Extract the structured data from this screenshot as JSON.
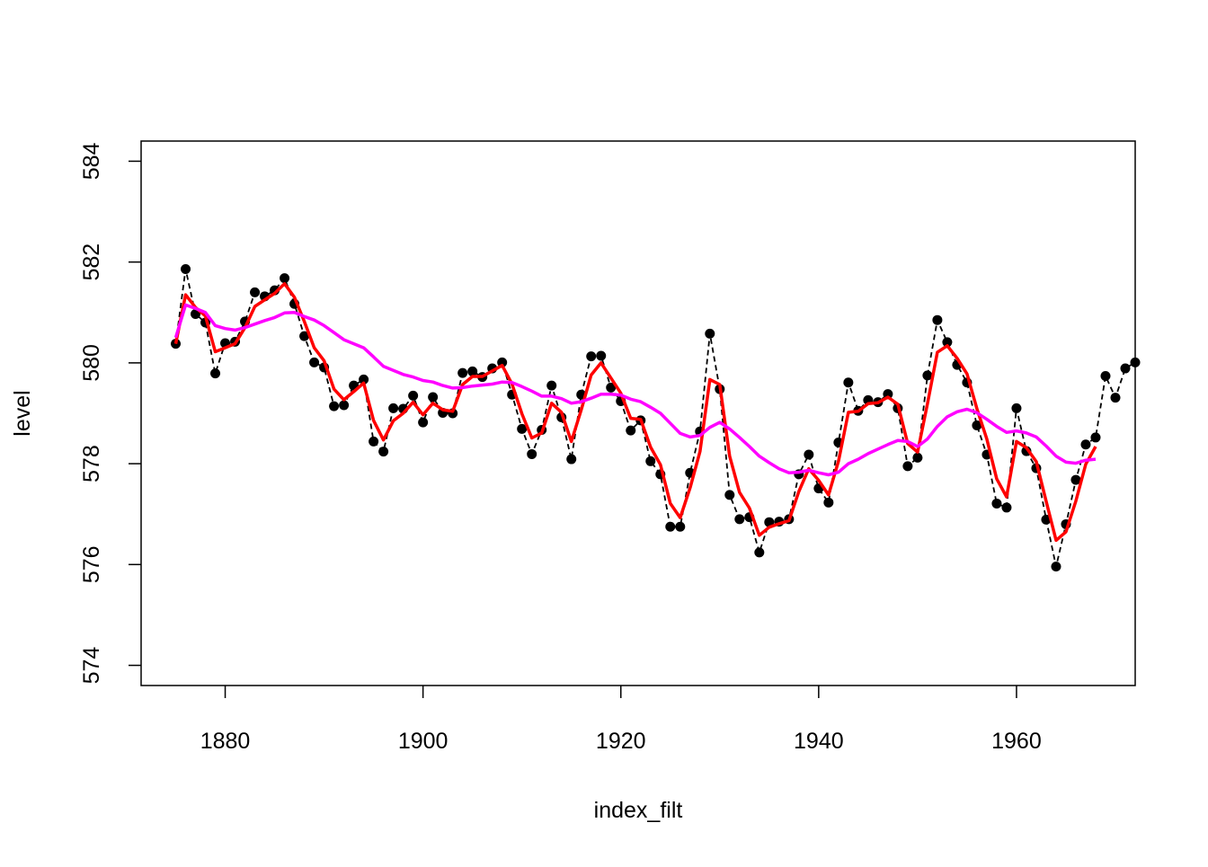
{
  "chart_data": {
    "type": "line",
    "title": "",
    "xlabel": "index_filt",
    "ylabel": "level",
    "xlim": [
      1871.5,
      1972
    ],
    "ylim": [
      573.6,
      584.4
    ],
    "xticks": [
      1880,
      1900,
      1920,
      1940,
      1960
    ],
    "yticks": [
      574,
      576,
      578,
      580,
      582,
      584
    ],
    "grid": false,
    "legend": "none",
    "colors": {
      "observed": "#000000",
      "filtered": "#ff0000",
      "smoothed": "#ff00ff"
    },
    "series": [
      {
        "style": "dashed-with-points",
        "color": "#000000",
        "x": [
          1875,
          1876,
          1877,
          1878,
          1879,
          1880,
          1881,
          1882,
          1883,
          1884,
          1885,
          1886,
          1887,
          1888,
          1889,
          1890,
          1891,
          1892,
          1893,
          1894,
          1895,
          1896,
          1897,
          1898,
          1899,
          1900,
          1901,
          1902,
          1903,
          1904,
          1905,
          1906,
          1907,
          1908,
          1909,
          1910,
          1911,
          1912,
          1913,
          1914,
          1915,
          1916,
          1917,
          1918,
          1919,
          1920,
          1921,
          1922,
          1923,
          1924,
          1925,
          1926,
          1927,
          1928,
          1929,
          1930,
          1931,
          1932,
          1933,
          1934,
          1935,
          1936,
          1937,
          1938,
          1939,
          1940,
          1941,
          1942,
          1943,
          1944,
          1945,
          1946,
          1947,
          1948,
          1949,
          1950,
          1951,
          1952,
          1953,
          1954,
          1955,
          1956,
          1957,
          1958,
          1959,
          1960,
          1961,
          1962,
          1963,
          1964,
          1965,
          1966,
          1967,
          1968,
          1969,
          1970,
          1971,
          1972
        ],
        "y": [
          580.38,
          581.86,
          580.97,
          580.8,
          579.79,
          580.39,
          580.42,
          580.82,
          581.4,
          581.32,
          581.44,
          581.68,
          581.17,
          580.53,
          580.01,
          579.91,
          579.14,
          579.16,
          579.55,
          579.67,
          578.44,
          578.24,
          579.1,
          579.09,
          579.35,
          578.82,
          579.32,
          579.01,
          579.0,
          579.8,
          579.83,
          579.72,
          579.89,
          580.01,
          579.37,
          578.69,
          578.19,
          578.67,
          579.55,
          578.92,
          578.09,
          579.37,
          580.13,
          580.14,
          579.51,
          579.24,
          578.66,
          578.86,
          578.05,
          577.79,
          576.75,
          576.75,
          577.82,
          578.64,
          580.58,
          579.48,
          577.38,
          576.9,
          576.94,
          576.24,
          576.84,
          576.85,
          576.9,
          577.79,
          578.18,
          577.51,
          577.23,
          578.42,
          579.61,
          579.05,
          579.26,
          579.22,
          579.38,
          579.1,
          577.95,
          578.12,
          579.75,
          580.85,
          580.41,
          579.96,
          579.61,
          578.76,
          578.18,
          577.21,
          577.13,
          579.1,
          578.25,
          577.91,
          576.89,
          575.96,
          576.8,
          577.68,
          578.38,
          578.52,
          579.74,
          579.31,
          579.89,
          580.01
        ]
      },
      {
        "style": "line",
        "color": "#ff0000",
        "x": [
          1875,
          1876,
          1877,
          1878,
          1879,
          1880,
          1881,
          1882,
          1883,
          1884,
          1885,
          1886,
          1887,
          1888,
          1889,
          1890,
          1891,
          1892,
          1893,
          1894,
          1895,
          1896,
          1897,
          1898,
          1899,
          1900,
          1901,
          1902,
          1903,
          1904,
          1905,
          1906,
          1907,
          1908,
          1909,
          1910,
          1911,
          1912,
          1913,
          1914,
          1915,
          1916,
          1917,
          1918,
          1919,
          1920,
          1921,
          1922,
          1923,
          1924,
          1925,
          1926,
          1927,
          1928,
          1929,
          1930,
          1931,
          1932,
          1933,
          1934,
          1935,
          1936,
          1937,
          1938,
          1939,
          1940,
          1941,
          1942,
          1943,
          1944,
          1945,
          1946,
          1947,
          1948,
          1949,
          1950,
          1951,
          1952,
          1953,
          1954,
          1955,
          1956,
          1957,
          1958,
          1959,
          1960,
          1961,
          1962,
          1963,
          1964,
          1965,
          1966,
          1967,
          1968
        ],
        "y": [
          580.38,
          581.35,
          581.1,
          580.93,
          580.22,
          580.3,
          580.38,
          580.7,
          581.12,
          581.25,
          581.38,
          581.57,
          581.3,
          580.82,
          580.3,
          580.04,
          579.48,
          579.27,
          579.43,
          579.6,
          578.86,
          578.47,
          578.85,
          579.0,
          579.22,
          578.97,
          579.2,
          579.07,
          579.04,
          579.57,
          579.73,
          579.73,
          579.84,
          579.95,
          579.58,
          578.99,
          578.51,
          578.61,
          579.2,
          579.02,
          578.44,
          579.07,
          579.76,
          580.0,
          579.7,
          579.4,
          578.9,
          578.88,
          578.33,
          577.98,
          577.21,
          576.93,
          577.52,
          578.24,
          579.67,
          579.57,
          578.15,
          577.43,
          577.12,
          576.58,
          576.74,
          576.81,
          576.87,
          577.45,
          577.9,
          577.67,
          577.38,
          578.05,
          579.02,
          579.04,
          579.19,
          579.21,
          579.32,
          579.18,
          578.4,
          578.23,
          579.19,
          580.21,
          580.34,
          580.09,
          579.78,
          579.09,
          578.49,
          577.7,
          577.34,
          578.44,
          578.32,
          578.04,
          577.25,
          576.48,
          576.65,
          577.26,
          577.99,
          578.34
        ]
      },
      {
        "style": "line",
        "color": "#ff00ff",
        "x": [
          1875,
          1876,
          1877,
          1878,
          1879,
          1880,
          1881,
          1882,
          1883,
          1884,
          1885,
          1886,
          1887,
          1888,
          1889,
          1890,
          1891,
          1892,
          1893,
          1894,
          1895,
          1896,
          1897,
          1898,
          1899,
          1900,
          1901,
          1902,
          1903,
          1904,
          1905,
          1906,
          1907,
          1908,
          1909,
          1910,
          1911,
          1912,
          1913,
          1914,
          1915,
          1916,
          1917,
          1918,
          1919,
          1920,
          1921,
          1922,
          1923,
          1924,
          1925,
          1926,
          1927,
          1928,
          1929,
          1930,
          1931,
          1932,
          1933,
          1934,
          1935,
          1936,
          1937,
          1938,
          1939,
          1940,
          1941,
          1942,
          1943,
          1944,
          1945,
          1946,
          1947,
          1948,
          1949,
          1950,
          1951,
          1952,
          1953,
          1954,
          1955,
          1956,
          1957,
          1958,
          1959,
          1960,
          1961,
          1962,
          1963,
          1964,
          1965,
          1966,
          1967,
          1968
        ],
        "y": [
          580.5,
          581.15,
          581.08,
          581.0,
          580.74,
          580.68,
          580.65,
          580.7,
          580.77,
          580.84,
          580.9,
          580.99,
          581.0,
          580.92,
          580.85,
          580.74,
          580.6,
          580.46,
          580.38,
          580.3,
          580.12,
          579.93,
          579.85,
          579.77,
          579.72,
          579.65,
          579.62,
          579.55,
          579.5,
          579.51,
          579.54,
          579.56,
          579.58,
          579.62,
          579.61,
          579.53,
          579.44,
          579.34,
          579.34,
          579.29,
          579.2,
          579.23,
          579.3,
          579.38,
          579.38,
          579.36,
          579.28,
          579.23,
          579.12,
          579.0,
          578.8,
          578.6,
          578.53,
          578.56,
          578.72,
          578.82,
          578.69,
          578.52,
          578.34,
          578.15,
          578.02,
          577.9,
          577.82,
          577.83,
          577.87,
          577.82,
          577.78,
          577.83,
          578.0,
          578.09,
          578.2,
          578.29,
          578.38,
          578.46,
          578.44,
          578.34,
          578.49,
          578.74,
          578.93,
          579.03,
          579.08,
          579.01,
          578.88,
          578.74,
          578.62,
          578.65,
          578.61,
          578.53,
          578.35,
          578.15,
          578.03,
          578.01,
          578.07,
          578.09
        ]
      }
    ]
  }
}
